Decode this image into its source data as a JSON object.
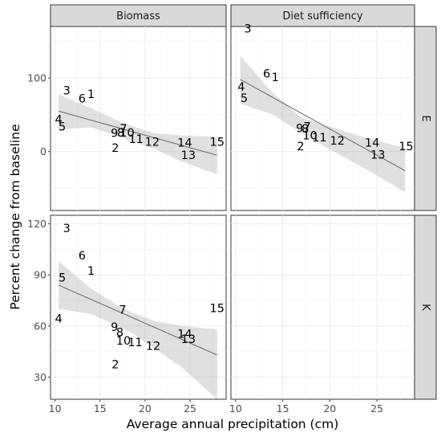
{
  "chart_data": {
    "type": "scatter",
    "xlabel": "Average annual precipitation (cm)",
    "ylabel": "Percent change from baseline",
    "x_ticks": [
      10,
      15,
      20,
      25
    ],
    "xlim": [
      9.5,
      29
    ],
    "grid": true,
    "panels": [
      {
        "col_label": "Biomass",
        "row_label": "E",
        "ylim": [
          -80,
          170
        ],
        "y_ticks": [
          0,
          100
        ],
        "points": [
          {
            "label": "1",
            "x": 14.0,
            "y": 77
          },
          {
            "label": "2",
            "x": 16.7,
            "y": 4
          },
          {
            "label": "3",
            "x": 11.3,
            "y": 82
          },
          {
            "label": "4",
            "x": 10.4,
            "y": 43
          },
          {
            "label": "5",
            "x": 10.8,
            "y": 33
          },
          {
            "label": "6",
            "x": 13.0,
            "y": 71
          },
          {
            "label": "7",
            "x": 17.6,
            "y": 30
          },
          {
            "label": "8",
            "x": 17.3,
            "y": 25
          },
          {
            "label": "9",
            "x": 16.6,
            "y": 24
          },
          {
            "label": "10",
            "x": 18.0,
            "y": 25
          },
          {
            "label": "11",
            "x": 19.0,
            "y": 16
          },
          {
            "label": "12",
            "x": 20.8,
            "y": 12
          },
          {
            "label": "13",
            "x": 24.8,
            "y": -6
          },
          {
            "label": "14",
            "x": 24.4,
            "y": 11
          },
          {
            "label": "15",
            "x": 28.0,
            "y": 12
          }
        ],
        "fit": {
          "x": [
            10.4,
            28.0
          ],
          "y": [
            55,
            -5
          ]
        },
        "ribbon": {
          "x": [
            10.4,
            14,
            17,
            18.5,
            21,
            24,
            28
          ],
          "lower": [
            30,
            33,
            21,
            14,
            4,
            -13,
            -31
          ],
          "upper": [
            78,
            59,
            42,
            35,
            25,
            22,
            20
          ]
        }
      },
      {
        "col_label": "Diet sufficiency",
        "row_label": "E",
        "ylim": [
          -80,
          170
        ],
        "y_ticks": [
          0,
          100
        ],
        "points": [
          {
            "label": "1",
            "x": 14.2,
            "y": 100
          },
          {
            "label": "2",
            "x": 16.9,
            "y": 6
          },
          {
            "label": "3",
            "x": 11.3,
            "y": 166
          },
          {
            "label": "4",
            "x": 10.6,
            "y": 87
          },
          {
            "label": "5",
            "x": 10.9,
            "y": 72
          },
          {
            "label": "6",
            "x": 13.3,
            "y": 105
          },
          {
            "label": "7",
            "x": 17.6,
            "y": 33
          },
          {
            "label": "8",
            "x": 17.4,
            "y": 30
          },
          {
            "label": "9",
            "x": 16.8,
            "y": 31
          },
          {
            "label": "10",
            "x": 17.9,
            "y": 21
          },
          {
            "label": "11",
            "x": 18.9,
            "y": 18
          },
          {
            "label": "12",
            "x": 20.8,
            "y": 14
          },
          {
            "label": "13",
            "x": 25.1,
            "y": -5
          },
          {
            "label": "14",
            "x": 24.5,
            "y": 11
          },
          {
            "label": "15",
            "x": 28.1,
            "y": 6
          }
        ],
        "fit": {
          "x": [
            10.5,
            28.0
          ],
          "y": [
            98,
            -26
          ]
        },
        "ribbon": {
          "x": [
            10.5,
            14,
            17,
            18.5,
            21,
            24,
            28
          ],
          "lower": [
            65,
            50,
            25,
            14,
            -4,
            -25,
            -55
          ],
          "upper": [
            130,
            79,
            46,
            40,
            30,
            18,
            5
          ]
        }
      },
      {
        "col_label": "Biomass",
        "row_label": "K",
        "ylim": [
          17,
          125
        ],
        "y_ticks": [
          30,
          60,
          90,
          120
        ],
        "points": [
          {
            "label": "1",
            "x": 14.0,
            "y": 92
          },
          {
            "label": "2",
            "x": 16.7,
            "y": 37
          },
          {
            "label": "3",
            "x": 11.3,
            "y": 117
          },
          {
            "label": "4",
            "x": 10.4,
            "y": 64
          },
          {
            "label": "5",
            "x": 10.8,
            "y": 88
          },
          {
            "label": "6",
            "x": 13.0,
            "y": 101
          },
          {
            "label": "7",
            "x": 17.5,
            "y": 69
          },
          {
            "label": "8",
            "x": 17.2,
            "y": 56
          },
          {
            "label": "9",
            "x": 16.6,
            "y": 59
          },
          {
            "label": "10",
            "x": 17.6,
            "y": 51
          },
          {
            "label": "11",
            "x": 18.9,
            "y": 50
          },
          {
            "label": "12",
            "x": 20.9,
            "y": 48
          },
          {
            "label": "13",
            "x": 24.8,
            "y": 52
          },
          {
            "label": "14",
            "x": 24.4,
            "y": 55
          },
          {
            "label": "15",
            "x": 28.0,
            "y": 70
          }
        ],
        "fit": {
          "x": [
            10.4,
            28.0
          ],
          "y": [
            84,
            43
          ]
        },
        "ribbon": {
          "x": [
            10.4,
            14,
            17,
            18.5,
            21,
            24,
            28
          ],
          "lower": [
            70,
            67,
            60,
            56,
            47,
            36,
            17
          ],
          "upper": [
            98,
            82,
            72,
            68,
            63,
            60,
            58
          ]
        }
      },
      {
        "col_label": "Diet sufficiency",
        "row_label": "K",
        "ylim": [
          17,
          125
        ],
        "y_ticks": [],
        "points": []
      }
    ]
  }
}
